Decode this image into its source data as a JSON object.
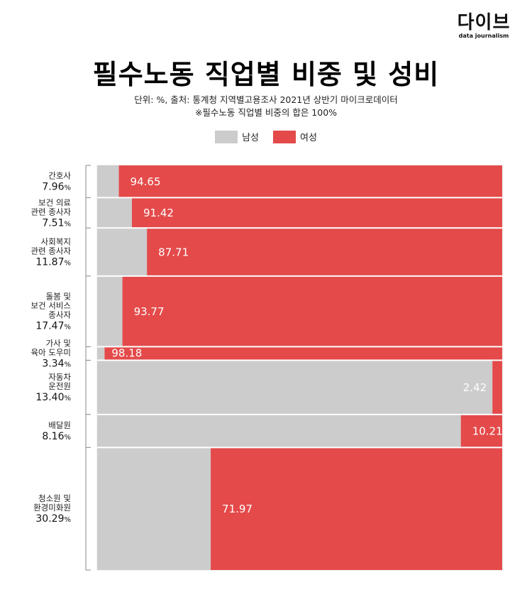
{
  "logo": {
    "text": "다이브",
    "subtitle": "data journalism"
  },
  "header": {
    "title": "필수노동 직업별 비중 및 성비",
    "subtitle_line1": "단위: %, 출처: 통계청 지역별고용조사 2021년 상반기 마이크로데이터",
    "subtitle_line2": "※필수노동 직업별 비중의 합은 100%"
  },
  "colors": {
    "male": "#cccccc",
    "female": "#e44a4a",
    "axis": "#888888",
    "frame": "#e5e5e5"
  },
  "chart_data": {
    "type": "marimekko",
    "title": "필수노동 직업별 비중 및 성비",
    "series": [
      {
        "name": "남성",
        "color": "#cccccc"
      },
      {
        "name": "여성",
        "color": "#e44a4a"
      }
    ],
    "categories": [
      {
        "name_lines": [
          "간호사"
        ],
        "share": 7.96,
        "share_label": "7.96",
        "female": 94.65,
        "female_label": "94.65"
      },
      {
        "name_lines": [
          "보건 의료",
          "관련 종사자"
        ],
        "share": 7.51,
        "share_label": "7.51",
        "female": 91.42,
        "female_label": "91.42"
      },
      {
        "name_lines": [
          "사회복지",
          "관련 종사자"
        ],
        "share": 11.87,
        "share_label": "11.87",
        "female": 87.71,
        "female_label": "87.71"
      },
      {
        "name_lines": [
          "돌봄 및",
          "보건 서비스",
          "종사자"
        ],
        "share": 17.47,
        "share_label": "17.47",
        "female": 93.77,
        "female_label": "93.77"
      },
      {
        "name_lines": [
          "가사 및",
          "육아 도우미"
        ],
        "share": 3.34,
        "share_label": "3.34",
        "female": 98.18,
        "female_label": "98.18"
      },
      {
        "name_lines": [
          "자동차",
          "운전원"
        ],
        "share": 13.4,
        "share_label": "13.40",
        "female": 2.42,
        "female_label": "2.42"
      },
      {
        "name_lines": [
          "배달원"
        ],
        "share": 8.16,
        "share_label": "8.16",
        "female": 10.21,
        "female_label": "10.21"
      },
      {
        "name_lines": [
          "청소원 및",
          "환경미화원"
        ],
        "share": 30.29,
        "share_label": "30.29",
        "female": 71.97,
        "female_label": "71.97"
      }
    ],
    "share_unit": "%",
    "female_unit": "%"
  }
}
